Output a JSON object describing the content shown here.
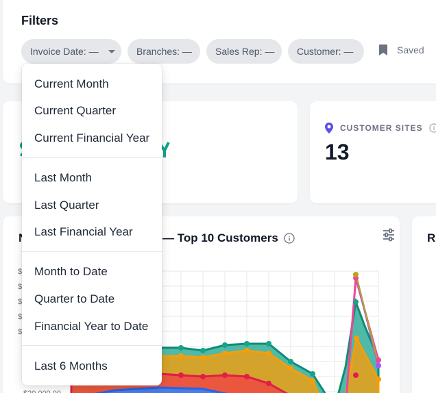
{
  "filters": {
    "title": "Filters",
    "chips": [
      {
        "label": "Invoice Date: —",
        "has_caret": true
      },
      {
        "label": "Branches: —"
      },
      {
        "label": "Sales Rep: —"
      },
      {
        "label": "Customer: —"
      }
    ],
    "saved_label": "Saved"
  },
  "dropdown": {
    "groups": [
      [
        "Current Month",
        "Current Quarter",
        "Current Financial Year"
      ],
      [
        "Last Month",
        "Last Quarter",
        "Last Financial Year"
      ],
      [
        "Month to Date",
        "Quarter to Date",
        "Financial Year to Date"
      ],
      [
        "Last 6 Months"
      ]
    ]
  },
  "kpis": {
    "customer_sites": {
      "label": "CUSTOMER SITES",
      "value": "13"
    }
  },
  "chart": {
    "title_prefix": "N",
    "title_suffix": "— Top 10 Customers",
    "side_title_fragment": "Re",
    "colors": {
      "teal": "#14a38b",
      "orange": "#f59e0b",
      "red": "#ef4444",
      "pink": "#ec4899",
      "blue": "#3b82f6",
      "purple": "#a855f7"
    }
  },
  "colors": {
    "accent_purple": "#5b4ee6",
    "kpi_green": "#14a38b",
    "chip_bg": "#e5e7eb"
  }
}
